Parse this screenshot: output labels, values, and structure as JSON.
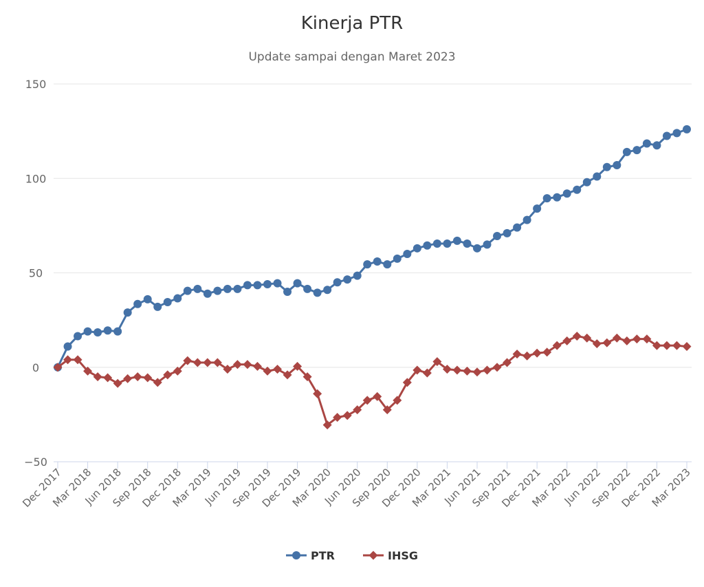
{
  "chart_data": {
    "type": "line",
    "title": "Kinerja PTR",
    "subtitle": "Update sampai dengan Maret 2023",
    "ylim": [
      -50,
      150
    ],
    "yticks": [
      -50,
      0,
      50,
      100,
      150
    ],
    "grid": true,
    "legend_position": "bottom-center",
    "x_start": "Dec 2017",
    "x_labels": [
      "Dec 2017",
      "Mar 2018",
      "Jun 2018",
      "Sep 2018",
      "Dec 2018",
      "Mar 2019",
      "Jun 2019",
      "Sep 2019",
      "Dec 2019",
      "Mar 2020",
      "Jun 2020",
      "Sep 2020",
      "Dec 2020",
      "Mar 2021",
      "Jun 2021",
      "Sep 2021",
      "Dec 2021",
      "Mar 2022",
      "Jun 2022",
      "Sep 2022",
      "Dec 2022",
      "Mar 2023"
    ],
    "series": [
      {
        "name": "PTR",
        "color": "#4572a7",
        "marker": "circle",
        "values": [
          0,
          11,
          16.5,
          19,
          18.5,
          19.5,
          19,
          29,
          33.5,
          36,
          32,
          34.5,
          36.5,
          40.5,
          41.5,
          39,
          40.5,
          41.5,
          41.5,
          43.5,
          43.5,
          44,
          44.5,
          40,
          44.5,
          41.5,
          39.5,
          41,
          45,
          46.5,
          48.5,
          54.5,
          56,
          54.5,
          57.5,
          60,
          63,
          64.5,
          65.5,
          65.5,
          67,
          65.5,
          63,
          65,
          69.5,
          71,
          74,
          78,
          84,
          89.5,
          90,
          92,
          94,
          98,
          101,
          106,
          107,
          114,
          115,
          118.5,
          117.5,
          122.5,
          124,
          126
        ]
      },
      {
        "name": "IHSG",
        "color": "#aa4643",
        "marker": "diamond",
        "values": [
          0,
          4,
          4,
          -2,
          -5,
          -5.5,
          -8.5,
          -6,
          -5,
          -5.5,
          -8,
          -4,
          -2,
          3.5,
          2.5,
          2.5,
          2.5,
          -1,
          1.5,
          1.5,
          0.5,
          -2,
          -1,
          -4,
          0.5,
          -5,
          -14,
          -30.5,
          -26.5,
          -25.5,
          -22.5,
          -17.5,
          -15.5,
          -22.5,
          -17.5,
          -8,
          -1.5,
          -3,
          3,
          -1,
          -1.5,
          -2,
          -2.5,
          -1.5,
          0,
          2.5,
          7,
          6,
          7.5,
          8,
          11.5,
          14,
          16.5,
          15.5,
          12.5,
          13,
          15.5,
          14,
          15,
          15,
          11.5,
          11.5,
          11.5,
          11
        ]
      }
    ]
  }
}
